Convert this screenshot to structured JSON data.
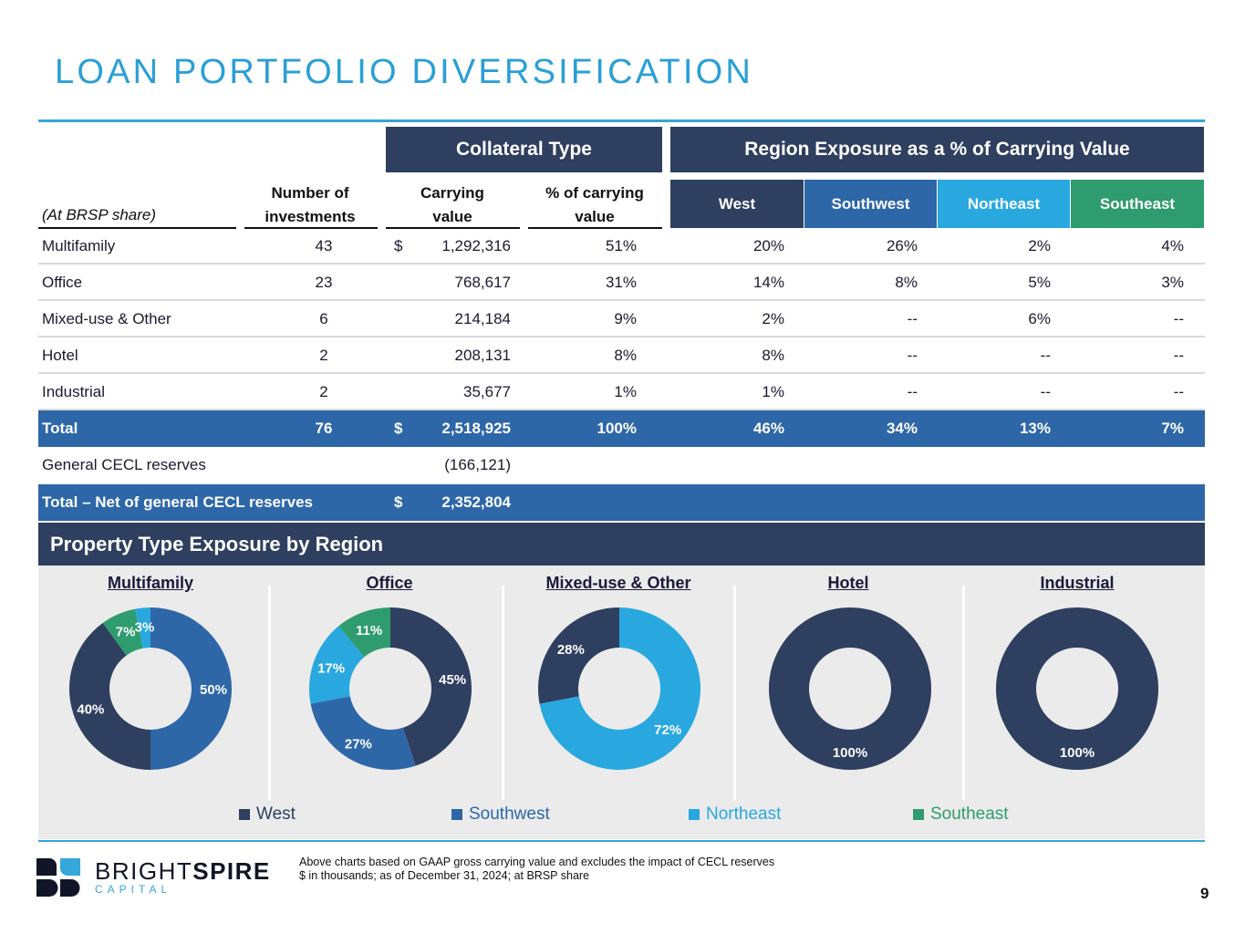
{
  "page": {
    "title": "LOAN PORTFOLIO DIVERSIFICATION",
    "page_number": "9"
  },
  "colors": {
    "west": "#2e3f5f",
    "southwest": "#2d67a8",
    "northeast": "#29a8e0",
    "southeast": "#2e9c6e",
    "title": "#2a9fd6",
    "band": "#2e3f5f",
    "total_row": "#2d67a8"
  },
  "table": {
    "collateral_band": "Collateral Type",
    "region_band": "Region Exposure as a % of Carrying Value",
    "row_label_header": "(At BRSP share)",
    "col_num_header_1": "Number of",
    "col_num_header_2": "investments",
    "col_carry_header_1": "Carrying",
    "col_carry_header_2": "value",
    "col_pct_header_1": "% of carrying",
    "col_pct_header_2": "value",
    "regions": [
      "West",
      "Southwest",
      "Northeast",
      "Southeast"
    ],
    "rows": [
      {
        "label": "Multifamily",
        "count": "43",
        "dollar": "$",
        "carrying": "1,292,316",
        "pct": "51%",
        "west": "20%",
        "southwest": "26%",
        "northeast": "2%",
        "southeast": "4%"
      },
      {
        "label": "Office",
        "count": "23",
        "dollar": "",
        "carrying": "768,617",
        "pct": "31%",
        "west": "14%",
        "southwest": "8%",
        "northeast": "5%",
        "southeast": "3%"
      },
      {
        "label": "Mixed-use & Other",
        "count": "6",
        "dollar": "",
        "carrying": "214,184",
        "pct": "9%",
        "west": "2%",
        "southwest": "--",
        "northeast": "6%",
        "southeast": "--"
      },
      {
        "label": "Hotel",
        "count": "2",
        "dollar": "",
        "carrying": "208,131",
        "pct": "8%",
        "west": "8%",
        "southwest": "--",
        "northeast": "--",
        "southeast": "--"
      },
      {
        "label": "Industrial",
        "count": "2",
        "dollar": "",
        "carrying": "35,677",
        "pct": "1%",
        "west": "1%",
        "southwest": "--",
        "northeast": "--",
        "southeast": "--"
      }
    ],
    "total": {
      "label": "Total",
      "count": "76",
      "dollar": "$",
      "carrying": "2,518,925",
      "pct": "100%",
      "west": "46%",
      "southwest": "34%",
      "northeast": "13%",
      "southeast": "7%"
    },
    "cecl": {
      "label": "General CECL reserves",
      "carrying": "(166,121)"
    },
    "net": {
      "label": "Total – Net of general CECL reserves",
      "dollar": "$",
      "carrying": "2,352,804"
    }
  },
  "charts_section": {
    "header": "Property Type Exposure by Region",
    "legend": [
      {
        "label": "West",
        "key": "west"
      },
      {
        "label": "Southwest",
        "key": "southwest"
      },
      {
        "label": "Northeast",
        "key": "northeast"
      },
      {
        "label": "Southeast",
        "key": "southeast"
      }
    ]
  },
  "chart_data": [
    {
      "type": "pie",
      "title": "Multifamily",
      "donut": true,
      "categories": [
        "Southwest",
        "West",
        "Southeast",
        "Northeast"
      ],
      "values": [
        50,
        40,
        7,
        3
      ],
      "labels": [
        "50%",
        "40%",
        "7%",
        "3%"
      ]
    },
    {
      "type": "pie",
      "title": "Office",
      "donut": true,
      "categories": [
        "West",
        "Southwest",
        "Northeast",
        "Southeast"
      ],
      "values": [
        45,
        27,
        17,
        11
      ],
      "labels": [
        "45%",
        "27%",
        "17%",
        "11%"
      ]
    },
    {
      "type": "pie",
      "title": "Mixed-use & Other",
      "donut": true,
      "categories": [
        "Northeast",
        "West"
      ],
      "values": [
        72,
        28
      ],
      "labels": [
        "72%",
        "28%"
      ]
    },
    {
      "type": "pie",
      "title": "Hotel",
      "donut": true,
      "categories": [
        "West"
      ],
      "values": [
        100
      ],
      "labels": [
        "100%"
      ]
    },
    {
      "type": "pie",
      "title": "Industrial",
      "donut": true,
      "categories": [
        "West"
      ],
      "values": [
        100
      ],
      "labels": [
        "100%"
      ]
    }
  ],
  "footer": {
    "note_line_1": "Above charts based on GAAP gross carrying value and excludes the impact of CECL reserves",
    "note_line_2": "$ in thousands; as of December 31, 2024; at BRSP share",
    "logo_word_light": "BRIGHT",
    "logo_word_bold": "SPIRE",
    "logo_sub": "CAPITAL"
  }
}
